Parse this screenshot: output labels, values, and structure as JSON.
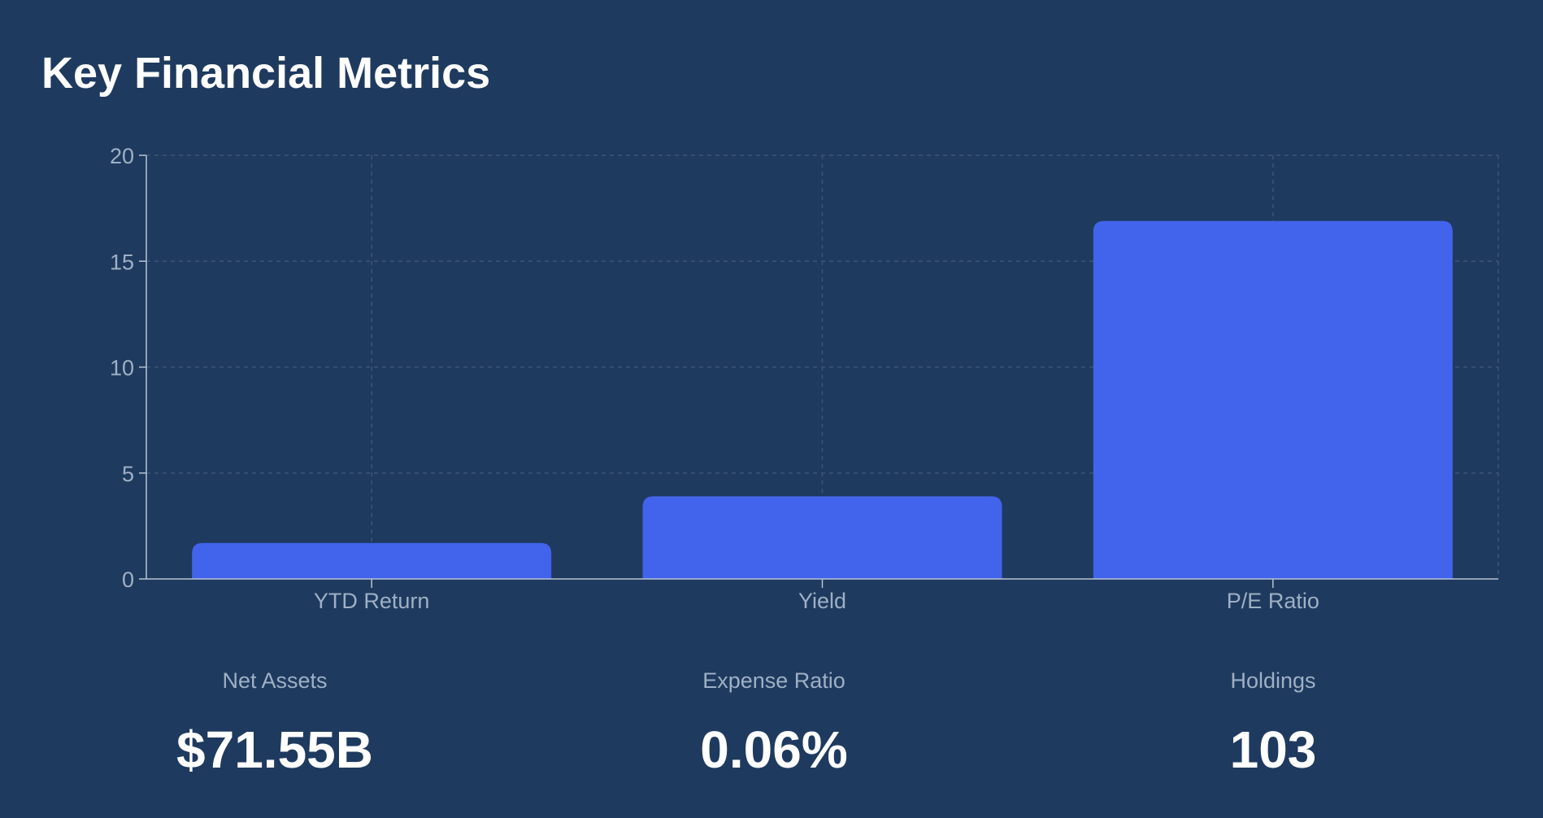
{
  "title": "Key Financial Metrics",
  "colors": {
    "background": "#1e3a5f",
    "bar": "#4263eb",
    "axis": "#b8c4d4",
    "grid": "#3c5575",
    "tick_text": "#9fb0c4",
    "value_text": "#ffffff"
  },
  "chart_data": {
    "type": "bar",
    "categories": [
      "YTD Return",
      "Yield",
      "P/E Ratio"
    ],
    "values": [
      1.7,
      3.9,
      16.9
    ],
    "ylim": [
      0,
      20
    ],
    "yticks": [
      0,
      5,
      10,
      15,
      20
    ],
    "grid": true,
    "title": "",
    "xlabel": "",
    "ylabel": ""
  },
  "stats": [
    {
      "label": "Net Assets",
      "value": "$71.55B"
    },
    {
      "label": "Expense Ratio",
      "value": "0.06%"
    },
    {
      "label": "Holdings",
      "value": "103"
    }
  ]
}
